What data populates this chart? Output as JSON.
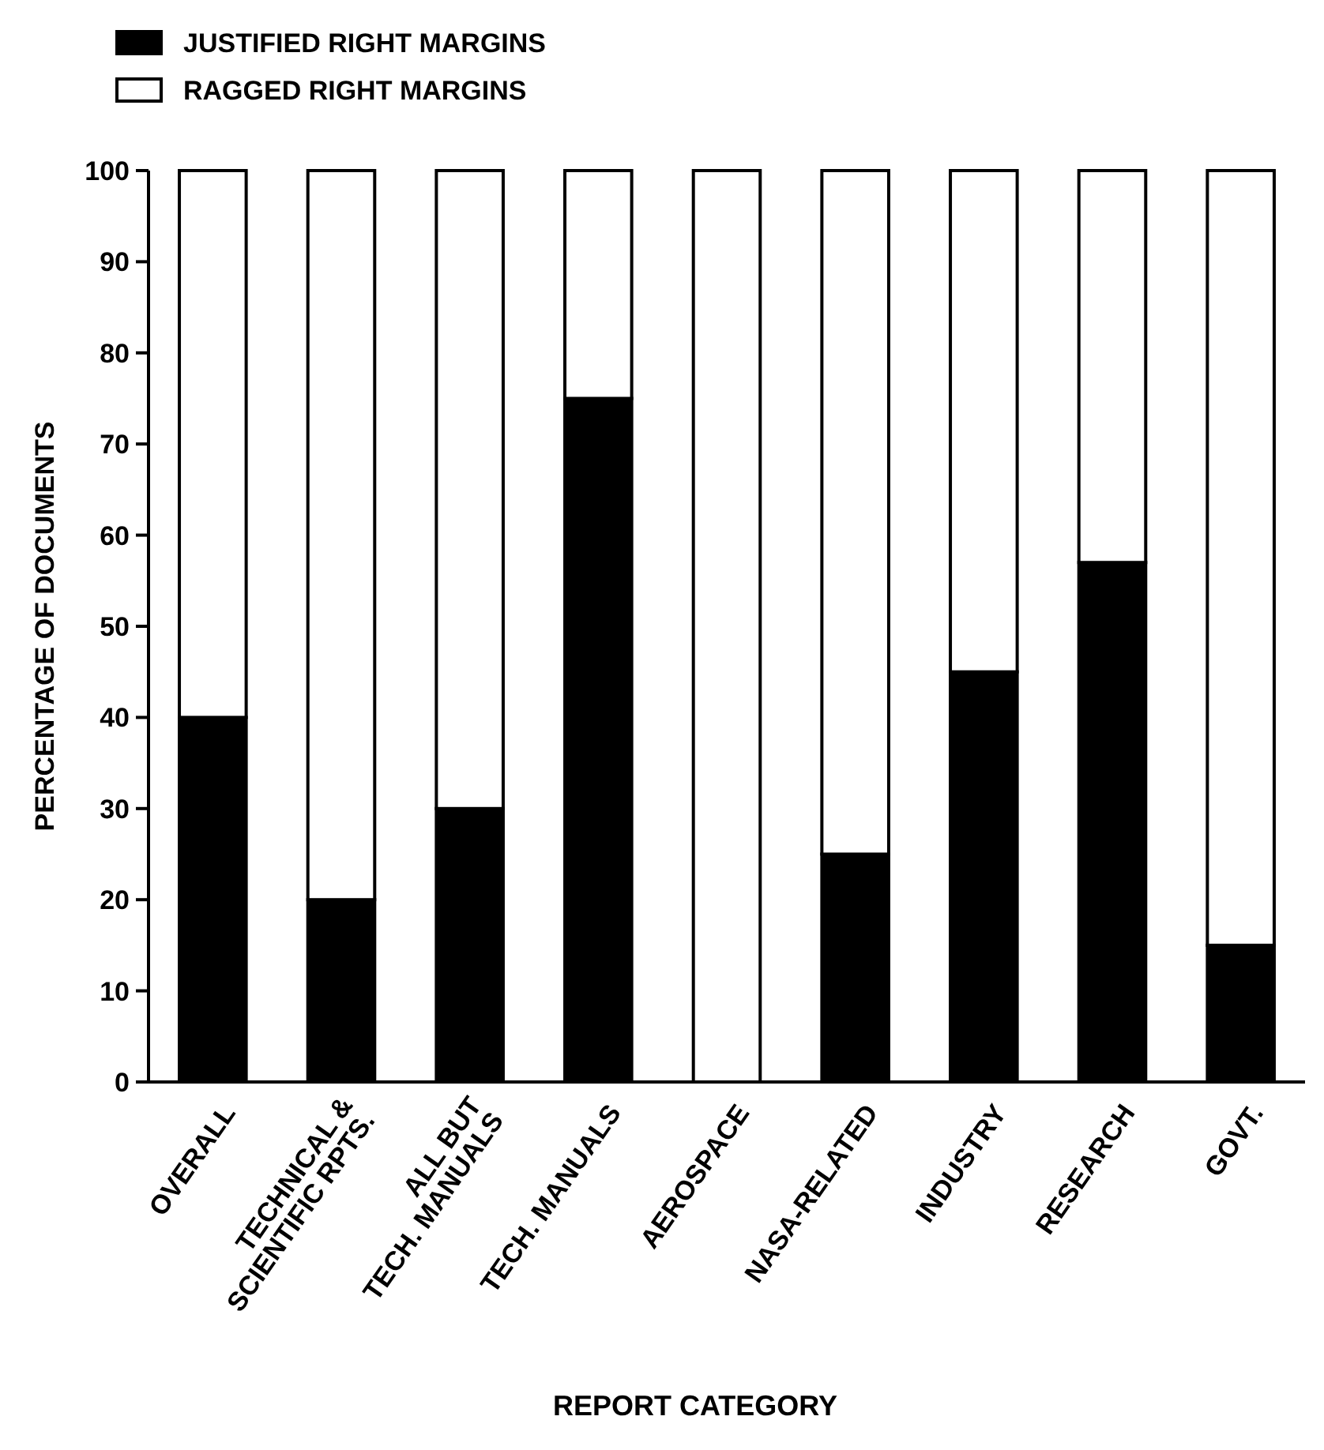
{
  "chart_data": {
    "type": "bar",
    "stacked": true,
    "xlabel": "REPORT CATEGORY",
    "ylabel": "PERCENTAGE OF DOCUMENTS",
    "categories": [
      "OVERALL",
      "TECHNICAL &\nSCIENTIFIC RPTS.",
      "ALL BUT\nTECH. MANUALS",
      "TECH. MANUALS",
      "AEROSPACE",
      "NASA-RELATED",
      "INDUSTRY",
      "RESEARCH",
      "GOVT."
    ],
    "series": [
      {
        "name": "JUSTIFIED RIGHT MARGINS",
        "color": "#000000",
        "values": [
          40,
          20,
          30,
          75,
          0,
          25,
          45,
          57,
          15
        ]
      },
      {
        "name": "RAGGED RIGHT MARGINS",
        "color": "#ffffff",
        "values": [
          60,
          80,
          70,
          25,
          100,
          75,
          55,
          43,
          85
        ]
      }
    ],
    "ylim": [
      0,
      100
    ],
    "yticks": [
      0,
      10,
      20,
      30,
      40,
      50,
      60,
      70,
      80,
      90,
      100
    ],
    "grid": false,
    "legend": "top left"
  }
}
